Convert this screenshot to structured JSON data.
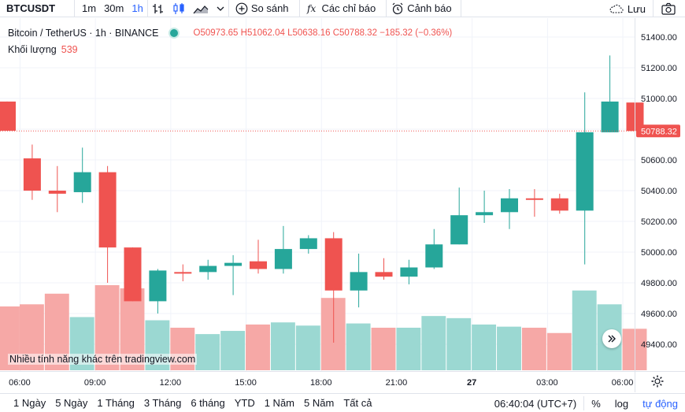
{
  "toolbar": {
    "symbol": "BTCUSDT",
    "intervals": [
      "1m",
      "30m",
      "1h"
    ],
    "active_interval": "1h",
    "compare_label": "So sánh",
    "indicators_label": "Các chỉ báo",
    "alerts_label": "Cảnh báo",
    "save_label": "Lưu"
  },
  "legend": {
    "title": "Bitcoin / TetherUS · 1h · BINANCE",
    "open": "O50973.65",
    "high": "H51062.04",
    "low": "L50638.16",
    "close": "C50788.32",
    "change": "−185.32 (−0.36%)",
    "volume_label": "Khối lượng",
    "volume_value": "539"
  },
  "watermark": "Nhiều tính năng khác trên tradingview.com",
  "colors": {
    "up": "#26a69a",
    "down": "#ef5350",
    "up_vol": "#9bd8d2",
    "down_vol": "#f6a8a6",
    "accent": "#2962ff"
  },
  "chart_data": {
    "type": "candlestick",
    "y_ticks": [
      "51400.00",
      "51200.00",
      "51000.00",
      "50800.00",
      "50600.00",
      "50400.00",
      "50200.00",
      "50000.00",
      "49800.00",
      "49600.00",
      "49400.00"
    ],
    "y_tick_values": [
      51400,
      51200,
      51000,
      50800,
      50600,
      50400,
      50200,
      50000,
      49800,
      49600,
      49400
    ],
    "last_price_label": "50788.32",
    "last_price": 50788.32,
    "x_ticks": [
      "06:00",
      "09:00",
      "12:00",
      "15:00",
      "18:00",
      "21:00",
      "27",
      "03:00",
      "06:00"
    ],
    "x_tick_hour_index": [
      1,
      4,
      7,
      10,
      13,
      16,
      19,
      22,
      25
    ],
    "candles": [
      {
        "o": 50980,
        "h": 50980,
        "l": 50790,
        "c": 50790,
        "v": 0.6
      },
      {
        "o": 50610,
        "h": 50700,
        "l": 50340,
        "c": 50400,
        "v": 0.62
      },
      {
        "o": 50400,
        "h": 50560,
        "l": 50260,
        "c": 50380,
        "v": 0.72
      },
      {
        "o": 50390,
        "h": 50680,
        "l": 50320,
        "c": 50520,
        "v": 0.5
      },
      {
        "o": 50520,
        "h": 50560,
        "l": 49800,
        "c": 50030,
        "v": 0.8
      },
      {
        "o": 50030,
        "h": 50030,
        "l": 49680,
        "c": 49680,
        "v": 0.77
      },
      {
        "o": 49680,
        "h": 49890,
        "l": 49600,
        "c": 49880,
        "v": 0.47
      },
      {
        "o": 49870,
        "h": 49920,
        "l": 49810,
        "c": 49860,
        "v": 0.4
      },
      {
        "o": 49870,
        "h": 49950,
        "l": 49820,
        "c": 49910,
        "v": 0.34
      },
      {
        "o": 49910,
        "h": 49980,
        "l": 49720,
        "c": 49930,
        "v": 0.37
      },
      {
        "o": 49940,
        "h": 50080,
        "l": 49860,
        "c": 49890,
        "v": 0.43
      },
      {
        "o": 49890,
        "h": 50170,
        "l": 49860,
        "c": 50020,
        "v": 0.45
      },
      {
        "o": 50020,
        "h": 50110,
        "l": 49990,
        "c": 50090,
        "v": 0.42
      },
      {
        "o": 50090,
        "h": 50130,
        "l": 49410,
        "c": 49750,
        "v": 0.68
      },
      {
        "o": 49750,
        "h": 49990,
        "l": 49640,
        "c": 49870,
        "v": 0.44
      },
      {
        "o": 49870,
        "h": 49960,
        "l": 49820,
        "c": 49840,
        "v": 0.4
      },
      {
        "o": 49840,
        "h": 49950,
        "l": 49790,
        "c": 49900,
        "v": 0.4
      },
      {
        "o": 49900,
        "h": 50150,
        "l": 49890,
        "c": 50050,
        "v": 0.51
      },
      {
        "o": 50050,
        "h": 50420,
        "l": 50050,
        "c": 50240,
        "v": 0.49
      },
      {
        "o": 50240,
        "h": 50400,
        "l": 50190,
        "c": 50260,
        "v": 0.43
      },
      {
        "o": 50260,
        "h": 50410,
        "l": 50150,
        "c": 50350,
        "v": 0.41
      },
      {
        "o": 50350,
        "h": 50410,
        "l": 50230,
        "c": 50340,
        "v": 0.4
      },
      {
        "o": 50350,
        "h": 50380,
        "l": 50250,
        "c": 50270,
        "v": 0.35
      },
      {
        "o": 50270,
        "h": 51040,
        "l": 49920,
        "c": 50780,
        "v": 0.75
      },
      {
        "o": 50780,
        "h": 51280,
        "l": 50780,
        "c": 50980,
        "v": 0.62
      },
      {
        "o": 50973.65,
        "h": 51062.04,
        "l": 50638.16,
        "c": 50788.32,
        "v": 0.39
      }
    ]
  },
  "bottombar": {
    "ranges": [
      "1 Ngày",
      "5 Ngày",
      "1 Tháng",
      "3 Tháng",
      "6 tháng",
      "YTD",
      "1 Năm",
      "5 Năm",
      "Tất cả"
    ],
    "time": "06:40:04 (UTC+7)",
    "percent": "%",
    "log": "log",
    "auto": "tự động"
  }
}
